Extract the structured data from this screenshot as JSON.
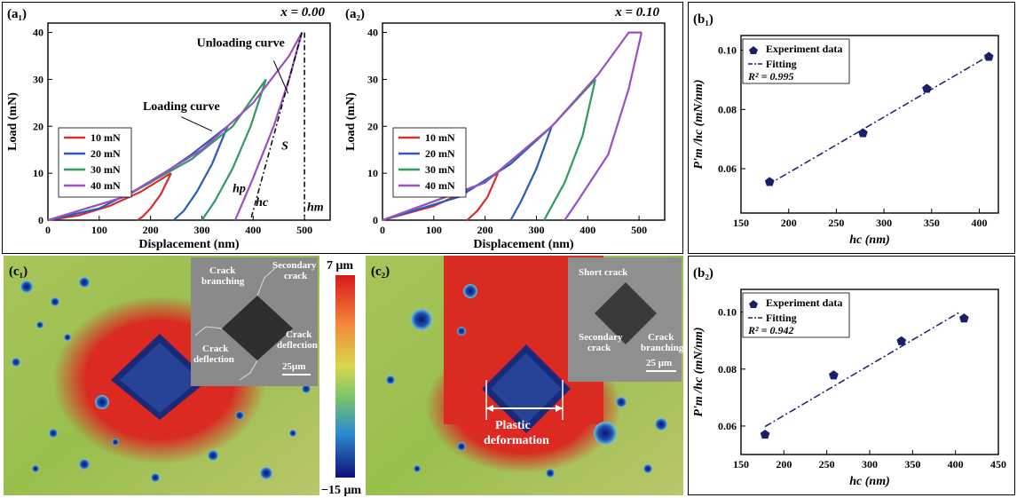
{
  "chart_data": [
    {
      "id": "a1",
      "type": "line",
      "label": "(a₁)",
      "annotation": "x = 0.00",
      "xlabel": "Displacement (nm)",
      "ylabel": "Load (mN)",
      "xlim": [
        0,
        550
      ],
      "ylim": [
        0,
        42
      ],
      "xticks": [
        "0",
        "100",
        "200",
        "300",
        "400",
        "500"
      ],
      "yticks": [
        "0",
        "10",
        "20",
        "30",
        "40"
      ],
      "legend_position": "bottom-left",
      "series": [
        {
          "name": "10 mN",
          "color": "#d62d2d",
          "loading": [
            [
              0,
              0
            ],
            [
              60,
              1
            ],
            [
              120,
              3
            ],
            [
              180,
              6
            ],
            [
              240,
              10
            ]
          ],
          "unloading": [
            [
              240,
              10
            ],
            [
              220,
              5.5
            ],
            [
              200,
              2.5
            ],
            [
              185,
              0.8
            ],
            [
              175,
              0
            ]
          ]
        },
        {
          "name": "20 mN",
          "color": "#2a5db8",
          "loading": [
            [
              0,
              0
            ],
            [
              100,
              2.5
            ],
            [
              200,
              8
            ],
            [
              280,
              14
            ],
            [
              350,
              20
            ]
          ],
          "unloading": [
            [
              350,
              20
            ],
            [
              320,
              12
            ],
            [
              290,
              6
            ],
            [
              265,
              2
            ],
            [
              245,
              0
            ]
          ]
        },
        {
          "name": "30 mN",
          "color": "#2e9b63",
          "loading": [
            [
              0,
              0
            ],
            [
              150,
              5
            ],
            [
              280,
              13
            ],
            [
              360,
              20
            ],
            [
              425,
              30
            ]
          ],
          "unloading": [
            [
              425,
              30
            ],
            [
              395,
              20
            ],
            [
              360,
              11
            ],
            [
              325,
              4
            ],
            [
              300,
              0
            ]
          ]
        },
        {
          "name": "40 mN",
          "color": "#9b4fc4",
          "loading": [
            [
              0,
              0
            ],
            [
              150,
              5
            ],
            [
              300,
              15
            ],
            [
              400,
              25
            ],
            [
              470,
              35
            ],
            [
              495,
              40
            ]
          ],
          "unloading": [
            [
              495,
              40
            ],
            [
              470,
              30
            ],
            [
              440,
              20
            ],
            [
              400,
              9
            ],
            [
              365,
              0
            ]
          ]
        }
      ],
      "annotations": [
        "Unloading curve",
        "Loading curve",
        "S",
        "hp",
        "hc",
        "hm"
      ]
    },
    {
      "id": "a2",
      "type": "line",
      "label": "(a₂)",
      "annotation": "x = 0.10",
      "xlabel": "Displacement (nm)",
      "ylabel": "Load (mN)",
      "xlim": [
        0,
        550
      ],
      "ylim": [
        0,
        42
      ],
      "xticks": [
        "0",
        "100",
        "200",
        "300",
        "400",
        "500"
      ],
      "yticks": [
        "0",
        "10",
        "20",
        "30",
        "40"
      ],
      "legend_position": "bottom-left",
      "series": [
        {
          "name": "10 mN",
          "color": "#d62d2d",
          "loading": [
            [
              0,
              0
            ],
            [
              100,
              3
            ],
            [
              170,
              6.5
            ],
            [
              225,
              10
            ]
          ],
          "unloading": [
            [
              225,
              10
            ],
            [
              205,
              5
            ],
            [
              185,
              2
            ],
            [
              165,
              0
            ]
          ]
        },
        {
          "name": "20 mN",
          "color": "#2a5db8",
          "loading": [
            [
              0,
              0
            ],
            [
              150,
              5
            ],
            [
              250,
              12
            ],
            [
              330,
              20
            ]
          ],
          "unloading": [
            [
              330,
              20
            ],
            [
              300,
              11
            ],
            [
              270,
              4
            ],
            [
              250,
              0
            ]
          ]
        },
        {
          "name": "30 mN",
          "color": "#2e9b63",
          "loading": [
            [
              0,
              0
            ],
            [
              200,
              8
            ],
            [
              330,
              20
            ],
            [
              415,
              30
            ]
          ],
          "unloading": [
            [
              415,
              30
            ],
            [
              390,
              18
            ],
            [
              355,
              8
            ],
            [
              315,
              0
            ]
          ]
        },
        {
          "name": "40 mN",
          "color": "#9b4fc4",
          "loading": [
            [
              0,
              0
            ],
            [
              200,
              8
            ],
            [
              330,
              20
            ],
            [
              420,
              31
            ],
            [
              480,
              40
            ],
            [
              505,
              40
            ]
          ],
          "unloading": [
            [
              505,
              40
            ],
            [
              480,
              28
            ],
            [
              440,
              14
            ],
            [
              380,
              4
            ],
            [
              355,
              0
            ]
          ]
        }
      ]
    },
    {
      "id": "b1",
      "type": "scatter",
      "label": "(b₁)",
      "xlabel": "hc (nm)",
      "ylabel": "P'm /hc (mN/nm)",
      "xlim": [
        150,
        420
      ],
      "ylim": [
        0.045,
        0.105
      ],
      "xticks": [
        "150",
        "200",
        "250",
        "300",
        "350",
        "400"
      ],
      "yticks": [
        "0.06",
        "0.08",
        "0.10"
      ],
      "series": [
        {
          "name": "Experiment data",
          "x": [
            180,
            278,
            345,
            410
          ],
          "y": [
            0.0555,
            0.072,
            0.087,
            0.0978
          ]
        }
      ],
      "fit": {
        "name": "Fitting",
        "x": [
          178,
          412
        ],
        "y": [
          0.0545,
          0.0985
        ]
      },
      "r2": "R² = 0.995"
    },
    {
      "id": "b2",
      "type": "scatter",
      "label": "(b₂)",
      "xlabel": "hc (nm)",
      "ylabel": "P'm /hc (mN/nm)",
      "xlim": [
        150,
        450
      ],
      "ylim": [
        0.05,
        0.108
      ],
      "xticks": [
        "150",
        "200",
        "250",
        "300",
        "350",
        "400",
        "450"
      ],
      "yticks": [
        "0.06",
        "0.08",
        "0.10"
      ],
      "series": [
        {
          "name": "Experiment data",
          "x": [
            178,
            258,
            337,
            410
          ],
          "y": [
            0.057,
            0.0778,
            0.0898,
            0.0978
          ]
        }
      ],
      "fit": {
        "name": "Fitting",
        "x": [
          178,
          405
        ],
        "y": [
          0.0598,
          0.1
        ]
      },
      "r2": "R² = 0.942"
    }
  ],
  "maps": {
    "c1": {
      "label": "(c₁)",
      "inset_scale": "25μm",
      "inset_labels": [
        "Crack branching",
        "Secondary crack",
        "Crack deflection",
        "Crack deflection"
      ]
    },
    "c2": {
      "label": "(c₂)",
      "inset_scale": "25 μm",
      "inset_labels": [
        "Short crack",
        "Secondary crack",
        "Crack branching"
      ],
      "annotation": "Plastic deformation"
    },
    "colorbar": {
      "max": "7 μm",
      "min": "−15 μm"
    }
  }
}
